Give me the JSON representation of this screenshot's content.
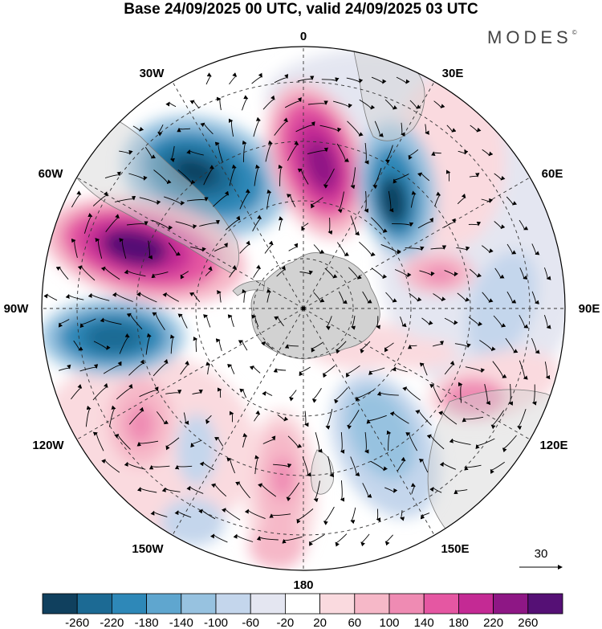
{
  "title": "Base 24/09/2025 00 UTC, valid 24/09/2025 03 UTC",
  "brand": {
    "name": "MODES",
    "mark": "©"
  },
  "longitude_labels": [
    "0",
    "30E",
    "60E",
    "90E",
    "120E",
    "150E",
    "180",
    "150W",
    "120W",
    "90W",
    "60W",
    "30W"
  ],
  "reference_vector": {
    "label": "30"
  },
  "colorbar": {
    "ticks": [
      "-260",
      "-220",
      "-180",
      "-140",
      "-100",
      "-60",
      "-20",
      "20",
      "60",
      "100",
      "140",
      "180",
      "220",
      "260"
    ],
    "colors": [
      "#10405e",
      "#1c6a94",
      "#2e88b8",
      "#5fa6cf",
      "#97c2e0",
      "#c4d6ec",
      "#e4e6f1",
      "#ffffff",
      "#fadadf",
      "#f6b8c8",
      "#ef8bb3",
      "#e557a2",
      "#c42a94",
      "#8e1785",
      "#551075"
    ]
  },
  "colors": {
    "land": "#d2d2d2",
    "coast": "#7a7a7a",
    "grid": "#333333",
    "vector": "#000000"
  }
}
